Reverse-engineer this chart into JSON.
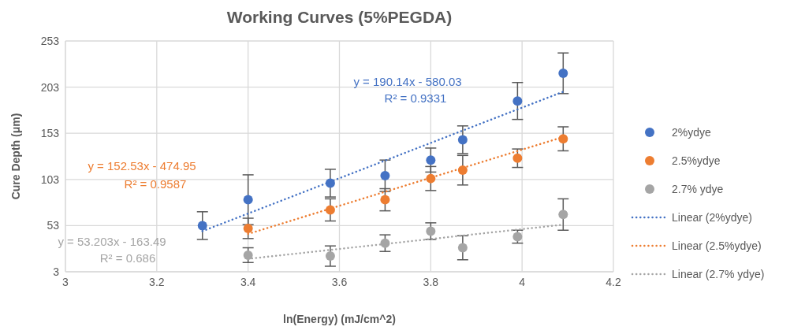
{
  "chart_data": {
    "type": "scatter",
    "title": "Working Curves (5%PEGDA)",
    "xlabel": "ln(Energy) (mJ/cm^2)",
    "ylabel": "Cure Depth (μm)",
    "xlim": [
      3,
      4.2
    ],
    "xticks": [
      3,
      3.2,
      3.4,
      3.6,
      3.8,
      4,
      4.2
    ],
    "ylim": [
      3,
      253
    ],
    "yticks": [
      3,
      53,
      103,
      153,
      203,
      253
    ],
    "grid": true,
    "legend": "right",
    "marker": "circle",
    "series": [
      {
        "name": "2%ydye",
        "color": "#4472c4",
        "x": [
          3.3,
          3.4,
          3.58,
          3.7,
          3.8,
          3.87,
          3.99,
          4.09
        ],
        "values": [
          53,
          81,
          99,
          107,
          124,
          146,
          188,
          218
        ],
        "errors": [
          15,
          27,
          15,
          17,
          13,
          15,
          20,
          22
        ]
      },
      {
        "name": "2.5%ydye",
        "color": "#ed7d31",
        "x": [
          3.4,
          3.58,
          3.7,
          3.8,
          3.87,
          3.99,
          4.09
        ],
        "values": [
          50,
          70,
          81,
          104,
          113,
          126,
          147
        ],
        "errors": [
          11,
          12,
          12,
          13,
          16,
          10,
          13
        ]
      },
      {
        "name": "2.7% ydye",
        "color": "#a5a5a5",
        "x": [
          3.4,
          3.58,
          3.7,
          3.8,
          3.87,
          3.99,
          4.09
        ],
        "values": [
          21,
          20,
          34,
          47,
          29,
          41,
          65
        ],
        "errors": [
          8,
          11,
          9,
          9,
          13,
          7,
          17
        ]
      },
      {
        "name": "Linear (2%ydye)",
        "type": "line",
        "line_style": "dotted",
        "marker": "none",
        "color": "#4472c4",
        "x": [
          3.3,
          4.09
        ],
        "values": [
          47,
          198
        ]
      },
      {
        "name": "Linear (2.5%ydye)",
        "type": "line",
        "line_style": "dotted",
        "marker": "none",
        "color": "#ed7d31",
        "x": [
          3.4,
          4.09
        ],
        "values": [
          44,
          149
        ]
      },
      {
        "name": "Linear (2.7% ydye)",
        "type": "line",
        "line_style": "dotted",
        "marker": "none",
        "color": "#a5a5a5",
        "x": [
          3.4,
          4.09
        ],
        "values": [
          17,
          54
        ]
      }
    ],
    "annotations": [
      "y = 190.14x - 580.03",
      "R² = 0.9331",
      "y = 152.53x - 474.95",
      "R² = 0.9587",
      "y = 53.203x - 163.49",
      "R² = 0.686"
    ]
  }
}
